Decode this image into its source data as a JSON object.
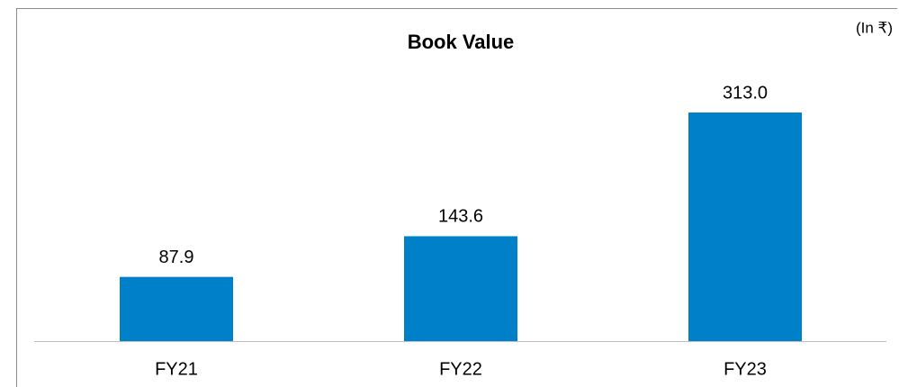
{
  "chart_data": {
    "type": "bar",
    "title": "Book Value",
    "annotation": "(In ₹)",
    "categories": [
      "FY21",
      "FY22",
      "FY23"
    ],
    "values": [
      87.9,
      143.6,
      313.0
    ],
    "value_labels": [
      "87.9",
      "143.6",
      "313.0"
    ],
    "color": "#0080c8"
  }
}
